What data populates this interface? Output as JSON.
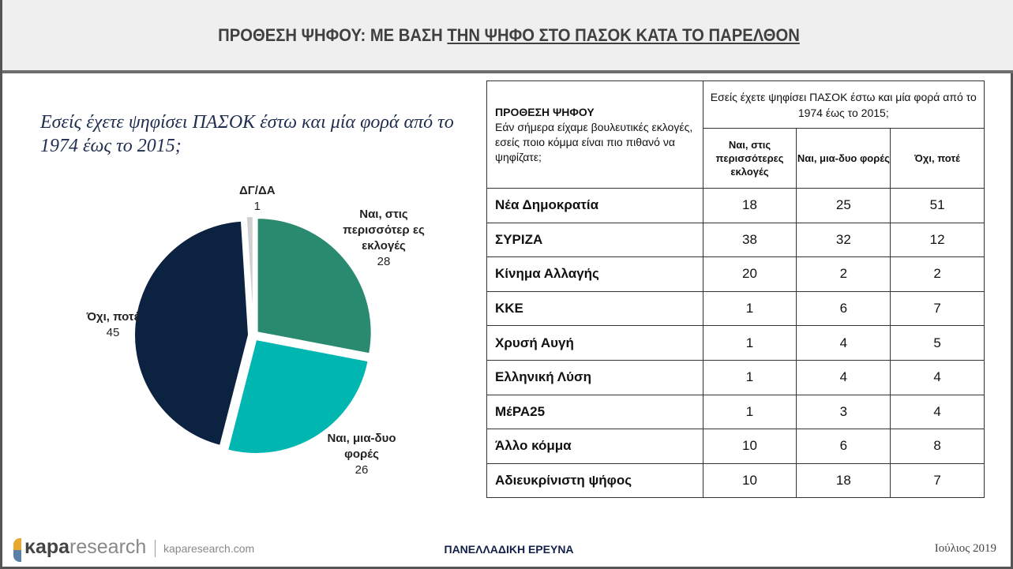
{
  "header": {
    "title_plain": "ΠΡΟΘΕΣΗ ΨΗΦΟΥ: ΜΕ ΒΑΣΗ ",
    "title_underlined": "ΤΗΝ ΨΗΦΟ ΣΤΟ ΠΑΣΟΚ ΚΑΤΑ ΤΟ ΠΑΡΕΛΘΟΝ"
  },
  "question": "Εσείς έχετε ψηφίσει ΠΑΣΟΚ έστω και μία φορά από το 1974 έως το 2015;",
  "chart_data": {
    "type": "pie",
    "title": "Εσείς έχετε ψηφίσει ΠΑΣΟΚ έστω και μία φορά από το 1974 έως το 2015;",
    "slices": [
      {
        "label": "Ναι, στις περισσότερ ες εκλογές",
        "value": 28,
        "color": "#2a8a6f"
      },
      {
        "label": "Ναι, μια-δυο φορές",
        "value": 26,
        "color": "#00b6b0"
      },
      {
        "label": "Όχι, ποτέ",
        "value": 45,
        "color": "#0b2240"
      },
      {
        "label": "ΔΓ/ΔΑ",
        "value": 1,
        "color": "#d0d0d0"
      }
    ]
  },
  "table": {
    "corner_title": "ΠΡΟΘΕΣΗ ΨΗΦΟΥ",
    "corner_text": "Εάν σήμερα είχαμε βουλευτικές εκλογές, εσείς ποιο κόμμα είναι πιο πιθανό να ψηφίζατε;",
    "group_header": "Εσείς έχετε ψηφίσει ΠΑΣΟΚ έστω και μία φορά από το 1974 έως το 2015;",
    "columns": [
      "Ναι, στις περισσότερες εκλογές",
      "Ναι, μια-δυο φορές",
      "Όχι, ποτέ"
    ],
    "rows": [
      [
        "Νέα Δημοκρατία",
        "18",
        "25",
        "51"
      ],
      [
        "ΣΥΡΙΖΑ",
        "38",
        "32",
        "12"
      ],
      [
        "Κίνημα Αλλαγής",
        "20",
        "2",
        "2"
      ],
      [
        "ΚΚΕ",
        "1",
        "6",
        "7"
      ],
      [
        "Χρυσή Αυγή",
        "1",
        "4",
        "5"
      ],
      [
        "Ελληνική Λύση",
        "1",
        "4",
        "4"
      ],
      [
        "ΜέΡΑ25",
        "1",
        "3",
        "4"
      ],
      [
        "Άλλο κόμμα",
        "10",
        "6",
        "8"
      ],
      [
        "Αδιευκρίνιστη ψήφος",
        "10",
        "18",
        "7"
      ]
    ]
  },
  "footer": {
    "logo_bold": "κapa",
    "logo_light": "research",
    "site": "kaparesearch.com",
    "center": "ΠΑΝΕΛΛΑΔΙΚΗ ΕΡΕΥΝΑ",
    "date": "Ιούλιος 2019"
  }
}
